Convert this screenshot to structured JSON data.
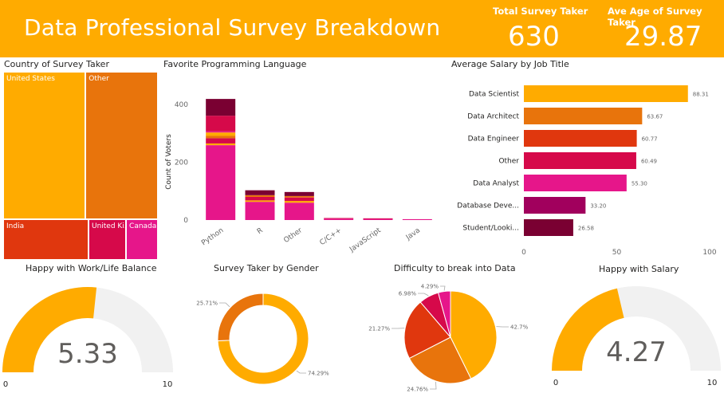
{
  "header": {
    "title": "Data Professional Survey Breakdown",
    "kpi_total_label": "Total Survey Taker",
    "kpi_total_value": "630",
    "kpi_age_label": "Ave Age of Survey Taker",
    "kpi_age_value": "29.87"
  },
  "colors": {
    "header": "#FFAB00",
    "palette": [
      "#FFAB00",
      "#E8740C",
      "#E0370E",
      "#D6094A",
      "#E6168A",
      "#A1005D",
      "#7A0032",
      "#F3F2F1"
    ]
  },
  "chart_data": [
    {
      "type": "treemap",
      "title": "Country of Survey Taker",
      "items": [
        {
          "label": "United States",
          "value": 262,
          "color": "#FFAB00"
        },
        {
          "label": "Other",
          "value": 230,
          "color": "#E8740C"
        },
        {
          "label": "India",
          "value": 75,
          "color": "#E0370E"
        },
        {
          "label": "United Ki...",
          "value": 33,
          "color": "#D6094A"
        },
        {
          "label": "Canada",
          "value": 28,
          "color": "#E6168A"
        }
      ]
    },
    {
      "type": "bar",
      "stacked": true,
      "title": "Favorite Programming Language",
      "ylabel": "Count of Voters",
      "ylim": [
        0,
        440
      ],
      "yticks": [
        0,
        200,
        400
      ],
      "categories": [
        "Python",
        "R",
        "Other",
        "C/C++",
        "JavaScript",
        "Java"
      ],
      "segments": [
        [
          {
            "value": 259,
            "color": "#E6168A"
          },
          {
            "value": 6,
            "color": "#FFAB00"
          },
          {
            "value": 18,
            "color": "#D6094A"
          },
          {
            "value": 8,
            "color": "#E8740C"
          },
          {
            "value": 12,
            "color": "#FFAB00"
          },
          {
            "value": 4,
            "color": "#E6168A"
          },
          {
            "value": 54,
            "color": "#D6094A"
          },
          {
            "value": 58,
            "color": "#7A0032"
          }
        ],
        [
          {
            "value": 63,
            "color": "#E6168A"
          },
          {
            "value": 5,
            "color": "#FFAB00"
          },
          {
            "value": 12,
            "color": "#D6094A"
          },
          {
            "value": 6,
            "color": "#E8740C"
          },
          {
            "value": 17,
            "color": "#7A0032"
          }
        ],
        [
          {
            "value": 60,
            "color": "#E6168A"
          },
          {
            "value": 6,
            "color": "#FFAB00"
          },
          {
            "value": 12,
            "color": "#D6094A"
          },
          {
            "value": 5,
            "color": "#E8740C"
          },
          {
            "value": 14,
            "color": "#7A0032"
          }
        ],
        [
          {
            "value": 5,
            "color": "#E6168A"
          },
          {
            "value": 2,
            "color": "#D6094A"
          }
        ],
        [
          {
            "value": 4,
            "color": "#E6168A"
          },
          {
            "value": 2,
            "color": "#D6094A"
          }
        ],
        [
          {
            "value": 3,
            "color": "#E6168A"
          }
        ]
      ]
    },
    {
      "type": "bar",
      "orientation": "horizontal",
      "title": "Average Salary by Job Title",
      "categories": [
        "Data Scientist",
        "Data Architect",
        "Data Engineer",
        "Other",
        "Data Analyst",
        "Database Deve...",
        "Student/Looki..."
      ],
      "values": [
        88.31,
        63.67,
        60.77,
        60.49,
        55.3,
        33.2,
        26.58
      ],
      "value_labels": [
        "88.31",
        "63.67",
        "60.77",
        "60.49",
        "55.30",
        "33.20",
        "26.58"
      ],
      "colors": [
        "#FFAB00",
        "#E8740C",
        "#E0370E",
        "#D6094A",
        "#E6168A",
        "#A1005D",
        "#7A0032"
      ],
      "xlim": [
        0,
        100
      ],
      "xticks": [
        "0",
        "50",
        "100"
      ]
    },
    {
      "type": "gauge",
      "title": "Happy with Work/Life Balance",
      "value": 5.33,
      "value_label": "5.33",
      "min": 0,
      "max": 10,
      "min_label": "0",
      "max_label": "10",
      "fill": "#FFAB00",
      "track": "#F1F1F1"
    },
    {
      "type": "pie",
      "donut": true,
      "title": "Survey Taker by Gender",
      "slices": [
        {
          "value": 74.29,
          "label": "74.29%",
          "color": "#FFAB00"
        },
        {
          "value": 25.71,
          "label": "25.71%",
          "color": "#E8740C"
        }
      ]
    },
    {
      "type": "pie",
      "title": "Difficulty to break into Data",
      "slices": [
        {
          "value": 42.7,
          "label": "42.7%",
          "color": "#FFAB00"
        },
        {
          "value": 24.76,
          "label": "24.76%",
          "color": "#E8740C"
        },
        {
          "value": 21.27,
          "label": "21.27%",
          "color": "#E0370E"
        },
        {
          "value": 6.98,
          "label": "6.98%",
          "color": "#D6094A"
        },
        {
          "value": 4.29,
          "label": "4.29%",
          "color": "#E6168A"
        }
      ]
    },
    {
      "type": "gauge",
      "title": "Happy with Salary",
      "value": 4.27,
      "value_label": "4.27",
      "min": 0,
      "max": 10,
      "min_label": "0",
      "max_label": "10",
      "fill": "#FFAB00",
      "track": "#F1F1F1"
    }
  ]
}
